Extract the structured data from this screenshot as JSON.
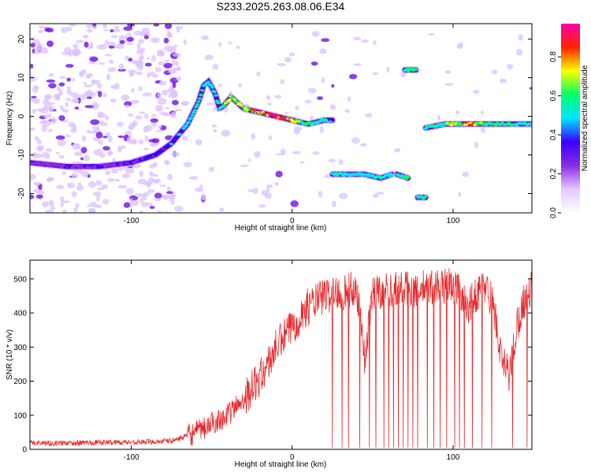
{
  "figure_title": "S233.2025.263.08.06.E34",
  "chart_data": [
    {
      "type": "heatmap",
      "id": "spectrogram",
      "xlabel": "Height of straight line (km)",
      "ylabel": "Frequency (Hz)",
      "xlim": [
        -163,
        149
      ],
      "ylim": [
        -25,
        24
      ],
      "xticks": [
        -100,
        0,
        100
      ],
      "yticks": [
        -20,
        -10,
        0,
        10,
        20
      ],
      "colorbar": {
        "label": "Normalized spectral amplitude",
        "range": [
          0.0,
          0.97
        ],
        "ticks": [
          0.0,
          0.2,
          0.4,
          0.6,
          0.8
        ],
        "tick_labels": [
          "0.0",
          "0.2",
          "0.4",
          "0.6",
          "0.8"
        ],
        "colors": [
          "#ffffff",
          "#e3c9ff",
          "#8a2be2",
          "#3a00ff",
          "#00e5ff",
          "#00ff66",
          "#ffff00",
          "#ff2200",
          "#ff00aa"
        ]
      },
      "ridges": [
        {
          "x": [
            -163,
            -140,
            -120,
            -100,
            -85,
            -75,
            -65,
            -58,
            -55,
            -52,
            -48,
            -45,
            -42,
            -38,
            -30,
            -20,
            -10,
            0,
            10,
            20,
            25
          ],
          "y": [
            -12,
            -13,
            -13,
            -12,
            -10,
            -7,
            -2,
            4,
            8,
            9,
            6,
            2,
            3,
            5,
            2,
            1,
            0,
            -1,
            -2,
            -1,
            -1
          ],
          "amplitude": [
            0.25,
            0.3,
            0.3,
            0.3,
            0.35,
            0.4,
            0.5,
            0.55,
            0.55,
            0.5,
            0.55,
            0.6,
            0.65,
            0.7,
            0.75,
            0.8,
            0.95,
            0.75,
            0.6,
            0.55,
            0.5
          ]
        },
        {
          "x": [
            25,
            35,
            45,
            55,
            62
          ],
          "y": [
            -15,
            -15,
            -15,
            -16,
            -15
          ],
          "amplitude": [
            0.55,
            0.55,
            0.5,
            0.55,
            0.5
          ]
        },
        {
          "x": [
            65,
            72
          ],
          "y": [
            -15,
            -16
          ],
          "amplitude": [
            0.6,
            0.55
          ]
        },
        {
          "x": [
            70,
            77
          ],
          "y": [
            12,
            12
          ],
          "amplitude": [
            0.6,
            0.6
          ]
        },
        {
          "x": [
            78,
            83
          ],
          "y": [
            -21,
            -21
          ],
          "amplitude": [
            0.6,
            0.55
          ]
        },
        {
          "x": [
            83,
            95,
            110,
            120,
            130,
            140,
            149
          ],
          "y": [
            -3,
            -2,
            -2,
            -2,
            -2,
            -2,
            -2
          ],
          "amplitude": [
            0.55,
            0.6,
            0.85,
            0.65,
            0.6,
            0.55,
            0.5
          ]
        }
      ]
    },
    {
      "type": "line",
      "id": "snr",
      "xlabel": "Height of straight line (km)",
      "ylabel": "SNR (10 * v/v)",
      "xlim": [
        -163,
        149
      ],
      "ylim": [
        0,
        555
      ],
      "xticks": [
        -100,
        0,
        100
      ],
      "yticks": [
        0,
        100,
        200,
        300,
        400,
        500
      ],
      "color": "#e8282b",
      "series": [
        {
          "name": "SNR",
          "x": [
            -163,
            -150,
            -120,
            -90,
            -75,
            -65,
            -55,
            -45,
            -40,
            -30,
            -20,
            -15,
            -10,
            -5,
            0,
            5,
            10,
            20,
            30,
            40,
            43,
            45,
            50,
            60,
            70,
            80,
            90,
            100,
            105,
            110,
            115,
            120,
            125,
            130,
            135,
            140,
            145,
            149
          ],
          "y": [
            20,
            18,
            20,
            22,
            25,
            40,
            60,
            90,
            100,
            150,
            210,
            250,
            300,
            330,
            360,
            390,
            420,
            450,
            460,
            470,
            380,
            260,
            460,
            470,
            470,
            470,
            480,
            480,
            460,
            420,
            460,
            480,
            430,
            260,
            220,
            370,
            450,
            470
          ],
          "dropouts_x": [
            25,
            31,
            35,
            42,
            48,
            52,
            57,
            60,
            63,
            66,
            69,
            72,
            75,
            78,
            84,
            88,
            92,
            96,
            101,
            104,
            107,
            112,
            118,
            124,
            137,
            146
          ]
        }
      ]
    }
  ]
}
